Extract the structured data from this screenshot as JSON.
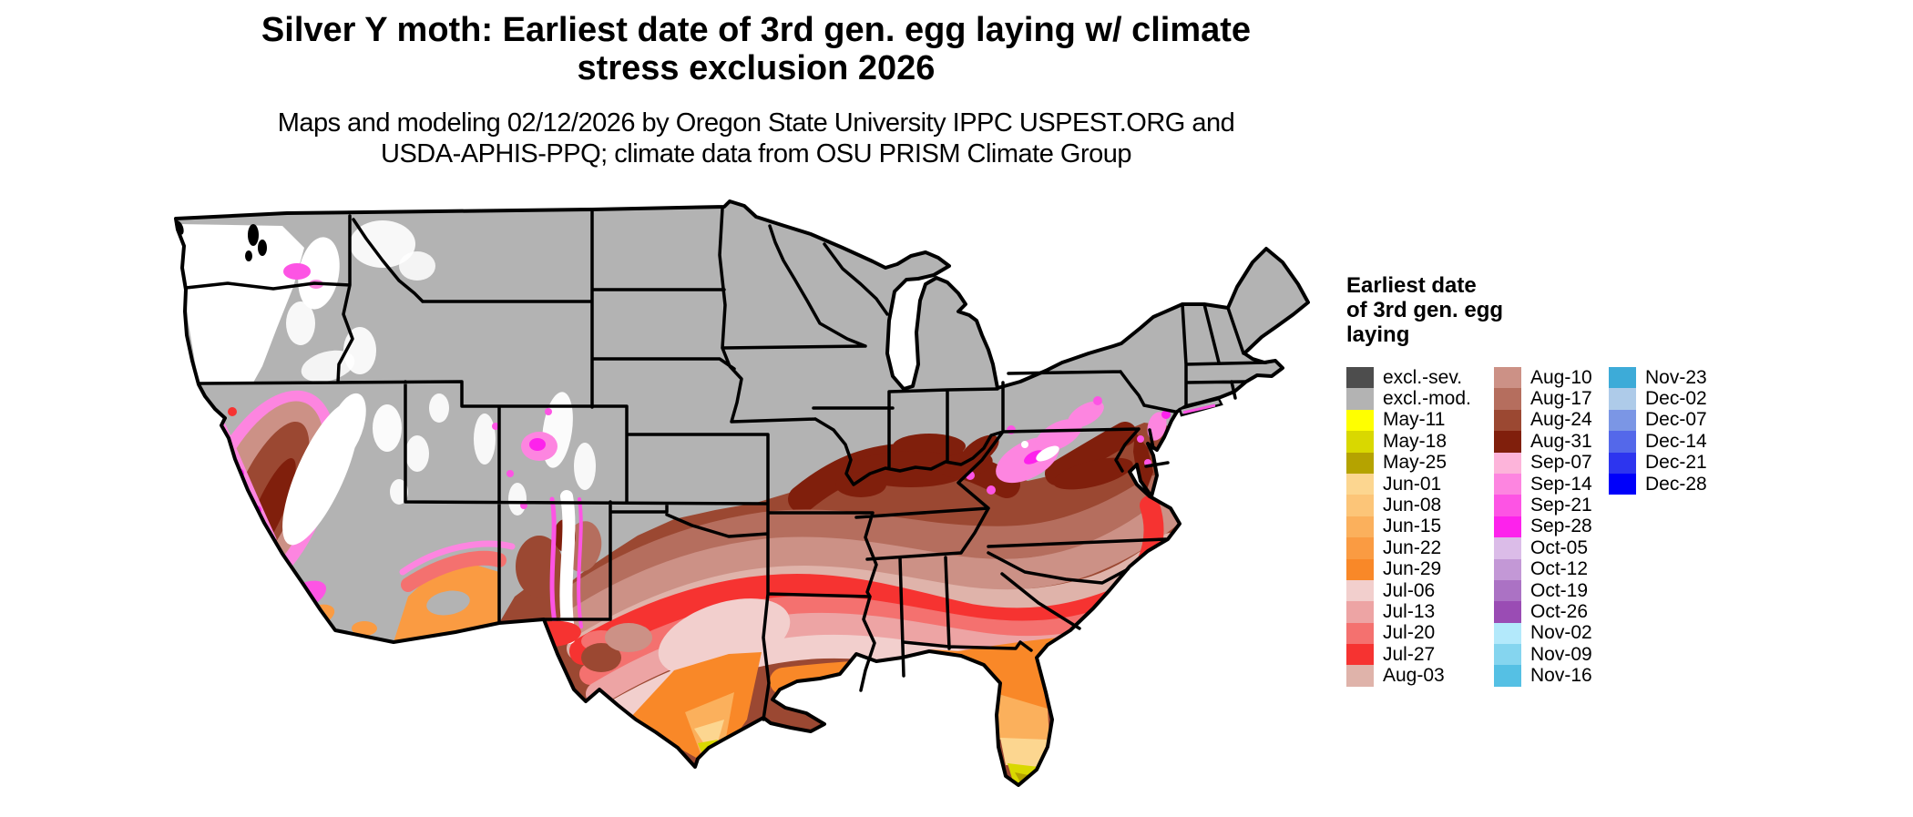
{
  "title": {
    "line1": "Silver Y moth: Earliest date of 3rd gen. egg laying w/ climate",
    "line2": "stress exclusion 2026"
  },
  "subtitle": {
    "line1": "Maps and modeling 02/12/2026 by Oregon State University IPPC USPEST.ORG and",
    "line2": "USDA-APHIS-PPQ; climate data from OSU PRISM Climate Group"
  },
  "legend": {
    "title_lines": [
      "Earliest date",
      "of 3rd gen. egg",
      "laying"
    ],
    "columns": [
      [
        {
          "label": "excl.-sev.",
          "color": "#4d4d4d"
        },
        {
          "label": "excl.-mod.",
          "color": "#b3b3b3"
        },
        {
          "label": "May-11",
          "color": "#ffff00"
        },
        {
          "label": "May-18",
          "color": "#d9d800"
        },
        {
          "label": "May-25",
          "color": "#b5a300"
        },
        {
          "label": "Jun-01",
          "color": "#fcd690"
        },
        {
          "label": "Jun-08",
          "color": "#fcc578"
        },
        {
          "label": "Jun-15",
          "color": "#fbb05c"
        },
        {
          "label": "Jun-22",
          "color": "#fa9b42"
        },
        {
          "label": "Jun-29",
          "color": "#f98828"
        },
        {
          "label": "Jul-06",
          "color": "#f2cfcd"
        },
        {
          "label": "Jul-13",
          "color": "#eda4a4"
        },
        {
          "label": "Jul-20",
          "color": "#f4716f"
        },
        {
          "label": "Jul-27",
          "color": "#f63331"
        },
        {
          "label": "Aug-03",
          "color": "#dfb3aa"
        }
      ],
      [
        {
          "label": "Aug-10",
          "color": "#cc9186"
        },
        {
          "label": "Aug-17",
          "color": "#b56e5e"
        },
        {
          "label": "Aug-24",
          "color": "#9b4832"
        },
        {
          "label": "Aug-31",
          "color": "#801f0c"
        },
        {
          "label": "Sep-07",
          "color": "#fdb4da"
        },
        {
          "label": "Sep-14",
          "color": "#fd85e0"
        },
        {
          "label": "Sep-21",
          "color": "#fd54e4"
        },
        {
          "label": "Sep-28",
          "color": "#fd22ec"
        },
        {
          "label": "Oct-05",
          "color": "#dbbce8"
        },
        {
          "label": "Oct-12",
          "color": "#c398d6"
        },
        {
          "label": "Oct-19",
          "color": "#ab72c4"
        },
        {
          "label": "Oct-26",
          "color": "#9a4cb4"
        },
        {
          "label": "Nov-02",
          "color": "#b3e9fb"
        },
        {
          "label": "Nov-09",
          "color": "#85d5ef"
        },
        {
          "label": "Nov-16",
          "color": "#55c0e4"
        }
      ],
      [
        {
          "label": "Nov-23",
          "color": "#3dabd8"
        },
        {
          "label": "Dec-02",
          "color": "#aecbe9"
        },
        {
          "label": "Dec-07",
          "color": "#7b96e5"
        },
        {
          "label": "Dec-14",
          "color": "#5468ea"
        },
        {
          "label": "Dec-21",
          "color": "#2d35ef"
        },
        {
          "label": "Dec-28",
          "color": "#0000fa"
        }
      ]
    ]
  },
  "map": {
    "kind": "CONUS choropleth raster map",
    "excluded_moderate_color": "#b3b3b3",
    "excluded_severe_color": "#4d4d4d",
    "background_color": "#ffffff",
    "border_color": "#000000"
  }
}
